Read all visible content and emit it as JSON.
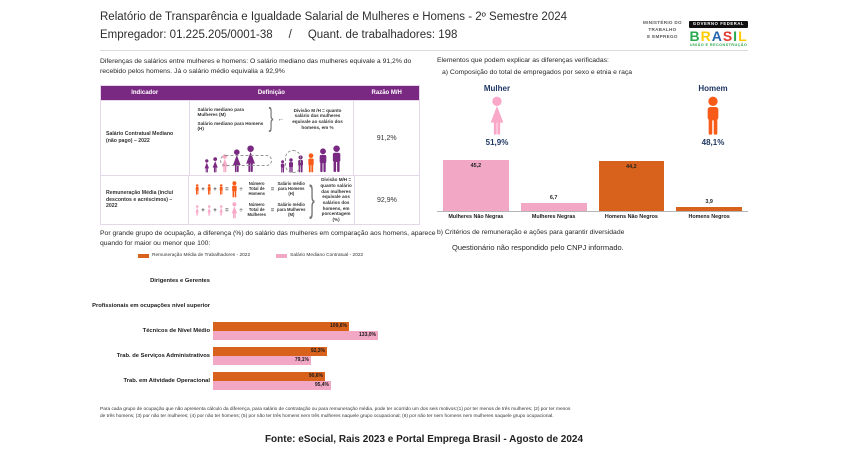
{
  "header": {
    "title": "Relatório de Transparência e Igualdade Salarial de Mulheres e Homens - 2º Semestre 2024",
    "employer": "Empregador: 01.225.205/0001-38",
    "separator": "/",
    "workers": "Quant. de trabalhadores: 198"
  },
  "logo": {
    "ministry_lines": [
      "MINISTÉRIO DO",
      "TRABALHO",
      "E EMPREGO"
    ],
    "gov_label": "GOVERNO FEDERAL",
    "brand_letters": [
      {
        "ch": "B",
        "color": "#2BA94F"
      },
      {
        "ch": "R",
        "color": "#FFCC00"
      },
      {
        "ch": "A",
        "color": "#2765AE"
      },
      {
        "ch": "S",
        "color": "#E23B30"
      },
      {
        "ch": "I",
        "color": "#2BA94F"
      },
      {
        "ch": "L",
        "color": "#FFCC00"
      }
    ],
    "tagline": "UNIÃO E RECONSTRUÇÃO"
  },
  "intro": "Diferenças de salários entre mulheres e homens: O salário mediano das mulheres equivale a 91,2% do recebido pelos homens. Já o salário médio equivalia a 92,9%",
  "table": {
    "headers": [
      "Indicador",
      "Definição",
      "Razão M/H"
    ],
    "row1": {
      "indicator": "Salário Contratual Mediano (não pago) – 2022",
      "line_women": "Salário mediano para Mulheres (M)",
      "line_men": "Salário mediano para Homens (H)",
      "brace": "}",
      "arrow": "←",
      "note": "Divisão M /H = quanto salário das mulheres equivale ao salário dos homens, em %",
      "ratio": "91,2%"
    },
    "row2": {
      "indicator": "Remuneração Média (inclui descontos e acréscimos) – 2022",
      "plus": "+",
      "equals": "=",
      "divide": "÷",
      "men_total": "Número Total de Homens",
      "men_avg": "Salário médio para Homens (H)",
      "women_total": "Número Total de Mulheres",
      "women_avg": "Salário médio para Mulheres (M)",
      "brace": "}",
      "note": "Divisão M/H = quanto salário das mulheres equivale aos salários dos homens, em porcentagem (%)",
      "ratio": "92,9%"
    }
  },
  "explain": {
    "heading": "Elementos que podem explicar as diferenças verificadas:",
    "item_a": "a) Composição do total de empregados por sexo e etnia e raça",
    "mulher_label": "Mulher",
    "mulher_pct": "51,9%",
    "homem_label": "Homem",
    "homem_pct": "48,1%",
    "item_b": "b) Critérios de remuneração e ações para garantir diversidade",
    "item_b_note": "Questionário não respondido pelo CNPJ informado."
  },
  "mid": {
    "paragraph": "Por grande grupo de ocupação, a diferença (%) do salário das mulheres em comparação aos homens, aparece quando for maior ou menor que 100:",
    "legend": [
      {
        "label": "Remuneração Média de Trabalhadores - 2022",
        "color": "#D8611C"
      },
      {
        "label": "Salário Mediano Contratual - 2022",
        "color": "#F2A7C4"
      }
    ]
  },
  "chart_data": [
    {
      "type": "bar",
      "title": "a) Composição do total de empregados por sexo e etnia e raça",
      "categories": [
        "Mulheres Não Negras",
        "Mulheres Negras",
        "Homens Não Negros",
        "Homens Negros"
      ],
      "values": [
        45.2,
        6.7,
        44.2,
        3.9
      ],
      "value_labels": [
        "45,2",
        "6,7",
        "44,2",
        "3,9"
      ],
      "colors": [
        "#F2A7C4",
        "#F2A7C4",
        "#D8611C",
        "#D8611C"
      ],
      "ylim": [
        0,
        50
      ],
      "legend_position": "none",
      "grid": false
    },
    {
      "type": "bar",
      "orientation": "horizontal",
      "categories": [
        "Dirigentes e Gerentes",
        "Profissionais em ocupações nível superior",
        "Técnicos de Nível Médio",
        "Trab. de Serviços Administrativos",
        "Trab. em Atividade Operacional"
      ],
      "series": [
        {
          "name": "Remuneração Média de Trabalhadores - 2022",
          "color": "#D8611C",
          "values": [
            null,
            null,
            109.6,
            92.3,
            90.6
          ],
          "labels": [
            "",
            "",
            "109,6%",
            "92,3%",
            "90,6%"
          ]
        },
        {
          "name": "Salário Mediano Contratual - 2022",
          "color": "#F2A7C4",
          "values": [
            null,
            null,
            133.0,
            79.1,
            95.4
          ],
          "labels": [
            "",
            "",
            "133,0%",
            "79,1%",
            "95,4%"
          ]
        }
      ],
      "xlim": [
        0,
        140
      ],
      "legend_position": "top",
      "grid": false
    }
  ],
  "footnote": "Para cada grupo de ocupação que não apresenta cálculo da diferença, para salário de contratação ou para remuneração média, pode ter ocorrido um dos seis motivos:(1) por ter menos de três mulheres; (2) por ter menos de três homens; (3) por não ter mulheres; (4) por não ter homens; (5) por não ter três homens nem três mulheres naquele grupo ocupacional; (6) por não ter nem homens nem mulheres naquele grupo ocupacional.",
  "footer": "Fonte: eSocial, Rais 2023 e Portal Emprega Brasil - Agosto de 2024"
}
